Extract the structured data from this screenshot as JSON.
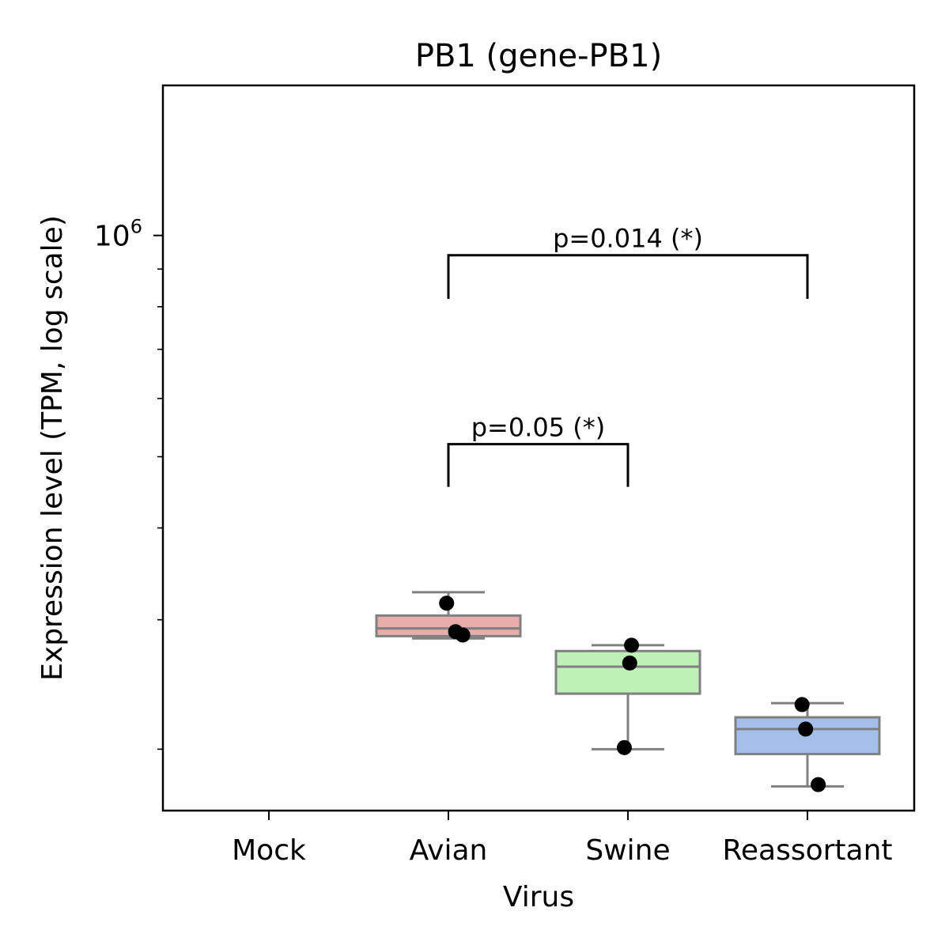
{
  "chart_data": {
    "type": "box",
    "title": "PB1 (gene-PB1)",
    "xlabel": "Virus",
    "ylabel": "Expression level (TPM, log scale)",
    "yscale": "log",
    "ylim": [
      165000,
      1600000
    ],
    "y_major_tick_label": {
      "base": "10",
      "exponent": "6",
      "value": 1000000
    },
    "categories": [
      "Mock",
      "Avian",
      "Swine",
      "Reassortant"
    ],
    "boxes": [
      {
        "category": "Mock",
        "color": null,
        "whisker_low": null,
        "q1": null,
        "median": null,
        "q3": null,
        "whisker_high": null
      },
      {
        "category": "Avian",
        "color": "#e8adaa",
        "whisker_low": 283000,
        "q1": 285000,
        "median": 292000,
        "q3": 304000,
        "whisker_high": 327000
      },
      {
        "category": "Swine",
        "color": "#bff0b7",
        "whisker_low": 200000,
        "q1": 238000,
        "median": 259000,
        "q3": 272000,
        "whisker_high": 277000
      },
      {
        "category": "Reassortant",
        "color": "#a4bfe9",
        "whisker_low": 178000,
        "q1": 197000,
        "median": 213000,
        "q3": 221000,
        "whisker_high": 231000
      }
    ],
    "points": [
      {
        "category": "Avian",
        "jitter": -0.01,
        "y": 316000
      },
      {
        "category": "Avian",
        "jitter": 0.04,
        "y": 289000
      },
      {
        "category": "Avian",
        "jitter": 0.08,
        "y": 286000
      },
      {
        "category": "Swine",
        "jitter": 0.02,
        "y": 277000
      },
      {
        "category": "Swine",
        "jitter": 0.01,
        "y": 262000
      },
      {
        "category": "Swine",
        "jitter": -0.02,
        "y": 201000
      },
      {
        "category": "Reassortant",
        "jitter": -0.03,
        "y": 230000
      },
      {
        "category": "Reassortant",
        "jitter": -0.01,
        "y": 213000
      },
      {
        "category": "Reassortant",
        "jitter": 0.06,
        "y": 179000
      }
    ],
    "significance": [
      {
        "from": "Avian",
        "to": "Swine",
        "label": "p=0.05 (*)",
        "y_bar": 520000,
        "y_leg_low": 455000
      },
      {
        "from": "Avian",
        "to": "Reassortant",
        "label": "p=0.014 (*)",
        "y_bar": 940000,
        "y_leg_low": 820000
      }
    ],
    "colors": {
      "box_edge": "#808080",
      "point": "#000000",
      "axis": "#000000"
    },
    "grid": false,
    "legend": "none"
  }
}
